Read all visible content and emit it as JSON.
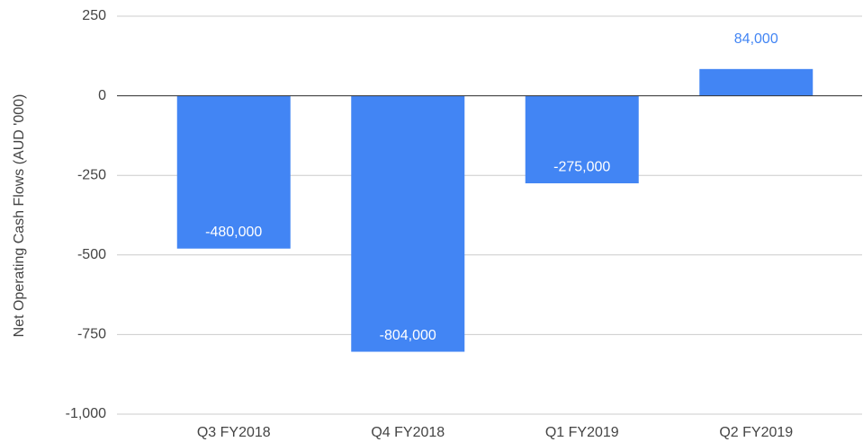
{
  "chart_data": {
    "type": "bar",
    "y_axis_label": "Net Operating Cash Flows (AUD '000)",
    "categories": [
      "Q3 FY2018",
      "Q4 FY2018",
      "Q1 FY2019",
      "Q2 FY2019"
    ],
    "values": [
      -480,
      -804,
      -275,
      84
    ],
    "value_labels": [
      "-480,000",
      "-804,000",
      "-275,000",
      "84,000"
    ],
    "color": "#4285f4",
    "ylim": [
      -1000,
      250
    ],
    "yticks": [
      250,
      0,
      -250,
      -500,
      -750,
      {
        "value": -1000,
        "label": "-1,000"
      }
    ],
    "grid": true
  }
}
